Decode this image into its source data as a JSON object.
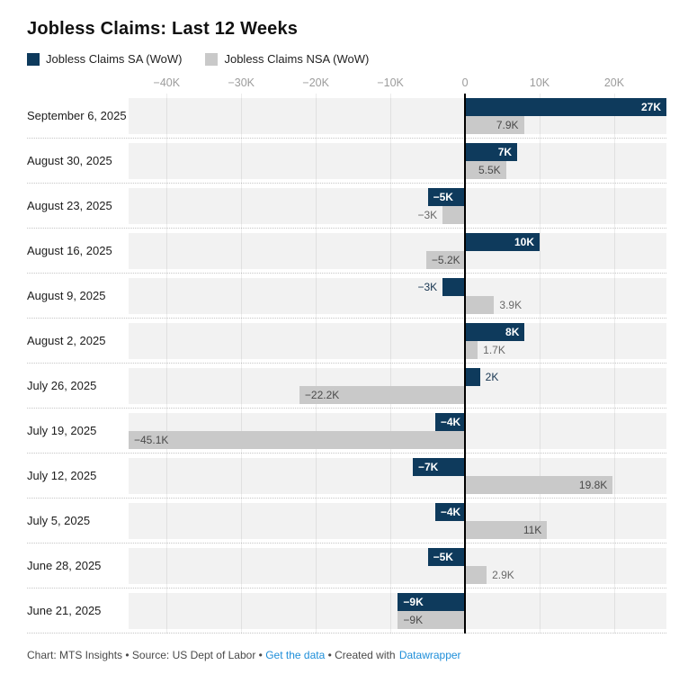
{
  "title": "Jobless Claims: Last 12 Weeks",
  "legend": {
    "items": [
      {
        "label": "Jobless Claims SA (WoW)",
        "color": "#0e3a5c"
      },
      {
        "label": "Jobless Claims NSA (WoW)",
        "color": "#c9c9c9"
      }
    ]
  },
  "footer": {
    "chart_credit": "Chart: MTS Insights",
    "separator": " • ",
    "source": "Source: US Dept of Labor",
    "get_data_link": "Get the data",
    "created_with": "Created with",
    "datawrapper_link": "Datawrapper",
    "link_color": "#1e8ed9"
  },
  "chart_data": {
    "type": "bar",
    "orientation": "horizontal",
    "title": "Jobless Claims: Last 12 Weeks",
    "categories": [
      "September 6, 2025",
      "August 30, 2025",
      "August 23, 2025",
      "August 16, 2025",
      "August 9, 2025",
      "August 2, 2025",
      "July 26, 2025",
      "July 19, 2025",
      "July 12, 2025",
      "July 5, 2025",
      "June 28, 2025",
      "June 21, 2025"
    ],
    "series": [
      {
        "name": "Jobless Claims SA (WoW)",
        "color": "#0e3a5c",
        "values": [
          27000,
          7000,
          -5000,
          10000,
          -3000,
          8000,
          2000,
          -4000,
          -7000,
          -4000,
          -5000,
          -9000
        ],
        "labels": [
          "27K",
          "7K",
          "−5K",
          "10K",
          "−3K",
          "8K",
          "2K",
          "−4K",
          "−7K",
          "−4K",
          "−5K",
          "−9K"
        ]
      },
      {
        "name": "Jobless Claims NSA (WoW)",
        "color": "#c9c9c9",
        "values": [
          7900,
          5500,
          -3000,
          -5200,
          3900,
          1700,
          -22200,
          -45100,
          19800,
          11000,
          2900,
          -9000
        ],
        "labels": [
          "7.9K",
          "5.5K",
          "−3K",
          "−5.2K",
          "3.9K",
          "1.7K",
          "−22.2K",
          "−45.1K",
          "19.8K",
          "11K",
          "2.9K",
          "−9K"
        ]
      }
    ],
    "x_axis": {
      "min": -45100,
      "max": 27000,
      "ticks": [
        -40000,
        -30000,
        -20000,
        -10000,
        0,
        10000,
        20000
      ],
      "tick_labels": [
        "−40K",
        "−30K",
        "−20K",
        "−10K",
        "0",
        "10K",
        "20K"
      ]
    },
    "grid": true,
    "zero_line": true,
    "legend_position": "top",
    "row_background": "#f2f2f2"
  }
}
